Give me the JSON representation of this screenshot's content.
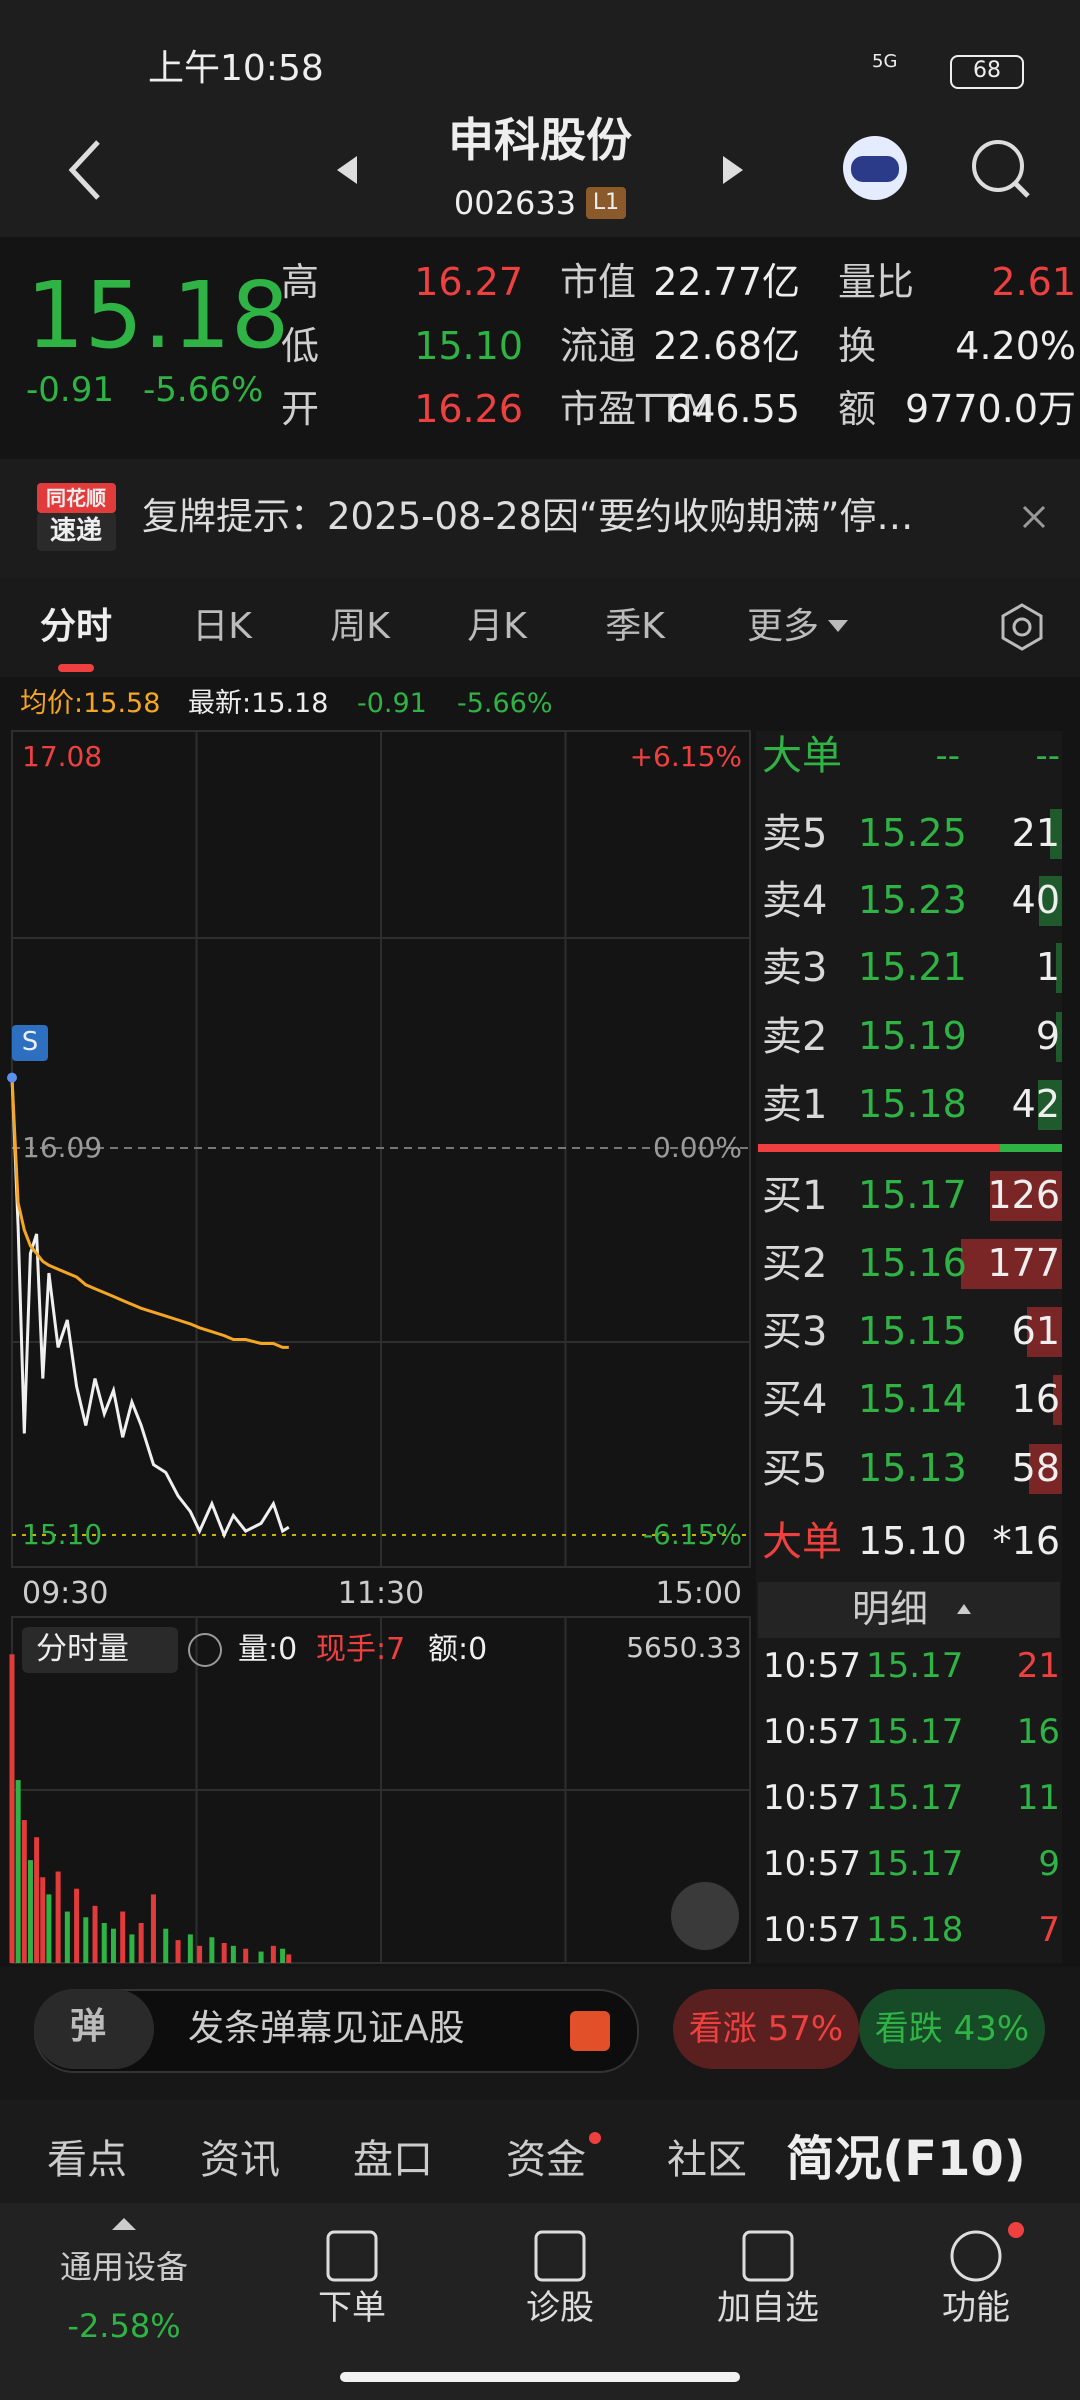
{
  "status_bar": {
    "time": "上午10:58",
    "network": "5G",
    "battery": "68"
  },
  "header": {
    "title": "申科股份",
    "code": "002633",
    "level": "L1"
  },
  "quote": {
    "price": "15.18",
    "change": "-0.91",
    "change_pct": "-5.66%",
    "stats": [
      {
        "label": "高",
        "value": "16.27"
      },
      {
        "label": "低",
        "value": "15.10"
      },
      {
        "label": "开",
        "value": "16.26"
      },
      {
        "label": "市值",
        "value": "22.77亿"
      },
      {
        "label": "流通",
        "value": "22.68亿"
      },
      {
        "label": "市盈TTM",
        "value": "646.55"
      },
      {
        "label": "量比",
        "value": "2.61"
      },
      {
        "label": "换",
        "value": "4.20%"
      },
      {
        "label": "额",
        "value": "9770.0万"
      }
    ]
  },
  "notice": {
    "badge_top": "同花顺",
    "badge_bottom": "速递",
    "text": "复牌提示：2025-08-28因“要约收购期满”停…"
  },
  "tabs": [
    "分时",
    "日K",
    "周K",
    "月K",
    "季K",
    "更多"
  ],
  "info_line": {
    "avg": "均价:15.58",
    "latest": "最新:15.18",
    "change": "-0.91",
    "change_pct": "-5.66%"
  },
  "chart_data": [
    {
      "type": "line",
      "x": [
        0,
        2,
        4,
        6,
        8,
        10,
        12,
        15,
        18,
        21,
        24,
        27,
        30,
        33,
        36,
        39,
        42,
        46,
        50,
        54,
        58,
        61,
        65,
        69,
        72,
        76,
        81,
        85,
        88,
        90
      ],
      "xlim": [
        0,
        240
      ],
      "xticks": [
        {
          "value": 0,
          "label": "09:30"
        },
        {
          "value": 120,
          "label": "11:30"
        },
        {
          "value": 240,
          "label": "15:00"
        }
      ],
      "ylim": [
        15.1,
        17.08
      ],
      "yticks": [
        {
          "value": 15.1,
          "label": "15.10"
        },
        16.09,
        17.08
      ],
      "pct_labels": [
        "-6.15%",
        "0.00%",
        "+6.15%"
      ],
      "marker": "S",
      "series": [
        {
          "color": "#f0f0f0",
          "values": [
            16.27,
            15.89,
            15.36,
            15.82,
            15.87,
            15.5,
            15.77,
            15.58,
            15.65,
            15.48,
            15.38,
            15.5,
            15.41,
            15.47,
            15.35,
            15.44,
            15.38,
            15.28,
            15.26,
            15.2,
            15.16,
            15.11,
            15.18,
            15.1,
            15.15,
            15.11,
            15.13,
            15.18,
            15.11,
            15.12
          ]
        },
        {
          "color": "#f5a623",
          "values": [
            16.27,
            15.95,
            15.88,
            15.84,
            15.82,
            15.8,
            15.79,
            15.78,
            15.77,
            15.76,
            15.74,
            15.73,
            15.72,
            15.71,
            15.7,
            15.69,
            15.68,
            15.67,
            15.66,
            15.65,
            15.64,
            15.63,
            15.62,
            15.61,
            15.6,
            15.6,
            15.59,
            15.59,
            15.58,
            15.58
          ]
        }
      ]
    },
    {
      "type": "bar",
      "x": [
        0,
        2,
        4,
        6,
        8,
        10,
        12,
        15,
        18,
        21,
        24,
        27,
        30,
        33,
        36,
        39,
        42,
        46,
        50,
        54,
        58,
        61,
        65,
        69,
        72,
        76,
        81,
        85,
        88,
        90
      ],
      "xlim": [
        0,
        240
      ],
      "ylim": [
        0,
        5650.33
      ],
      "yticks": [
        5650.33
      ],
      "values": [
        5400,
        3200,
        2500,
        1800,
        2200,
        1500,
        1200,
        1600,
        900,
        1300,
        800,
        1000,
        700,
        600,
        900,
        500,
        700,
        1200,
        600,
        400,
        500,
        300,
        450,
        350,
        300,
        250,
        200,
        300,
        250,
        150
      ],
      "colors": [
        "#e23b3b",
        "#2fb344",
        "#e23b3b",
        "#2fb344",
        "#e23b3b",
        "#e23b3b",
        "#2fb344",
        "#e23b3b",
        "#2fb344",
        "#e23b3b",
        "#2fb344",
        "#e23b3b",
        "#2fb344",
        "#2fb344",
        "#e23b3b",
        "#2fb344",
        "#e23b3b",
        "#e23b3b",
        "#2fb344",
        "#e23b3b",
        "#2fb344",
        "#e23b3b",
        "#2fb344",
        "#e23b3b",
        "#2fb344",
        "#e23b3b",
        "#2fb344",
        "#e23b3b",
        "#2fb344",
        "#e23b3b"
      ]
    }
  ],
  "volume_header": {
    "selector": "分时量",
    "vol": "量:0",
    "hand": "现手:7",
    "amount": "额:0"
  },
  "order_book": {
    "big_label": "大单",
    "big_values": [
      "--",
      "--"
    ],
    "asks": [
      {
        "label": "卖5",
        "price": "15.25",
        "qty": "21"
      },
      {
        "label": "卖4",
        "price": "15.23",
        "qty": "40"
      },
      {
        "label": "卖3",
        "price": "15.21",
        "qty": "1"
      },
      {
        "label": "卖2",
        "price": "15.19",
        "qty": "9"
      },
      {
        "label": "卖1",
        "price": "15.18",
        "qty": "42"
      }
    ],
    "bids": [
      {
        "label": "买1",
        "price": "15.17",
        "qty": "126"
      },
      {
        "label": "买2",
        "price": "15.16",
        "qty": "177"
      },
      {
        "label": "买3",
        "price": "15.15",
        "qty": "61"
      },
      {
        "label": "买4",
        "price": "15.14",
        "qty": "16"
      },
      {
        "label": "买5",
        "price": "15.13",
        "qty": "58"
      }
    ],
    "big_bottom": {
      "label": "大单",
      "price": "15.10",
      "qty": "*16"
    }
  },
  "detail": {
    "title": "明细",
    "rows": [
      [
        "10:57",
        "15.17",
        "21"
      ],
      [
        "10:57",
        "15.17",
        "16"
      ],
      [
        "10:57",
        "15.17",
        "11"
      ],
      [
        "10:57",
        "15.17",
        "9"
      ],
      [
        "10:57",
        "15.18",
        "7"
      ]
    ]
  },
  "danmaku": {
    "icon": "弹",
    "placeholder": "发条弹幕见证A股",
    "up": "看涨 57%",
    "down": "看跌 43%"
  },
  "bottom_tabs": [
    "看点",
    "资讯",
    "盘口",
    "资金",
    "社区",
    "简况(F10)"
  ],
  "nav": {
    "sector": "通用设备",
    "sector_change": "-2.58%",
    "items": [
      "下单",
      "诊股",
      "加自选",
      "功能"
    ]
  }
}
